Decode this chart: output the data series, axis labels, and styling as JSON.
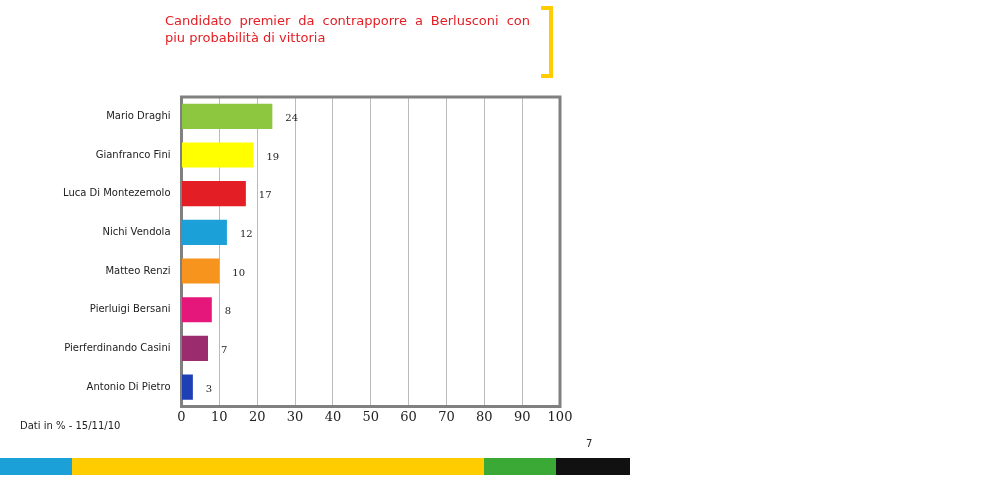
{
  "chart_data": {
    "type": "bar",
    "orientation": "horizontal",
    "title": "Candidato premier da contrapporre a Berlusconi con piu probabilità di vittoria",
    "categories": [
      "Mario Draghi",
      "Gianfranco Fini",
      "Luca Di Montezemolo",
      "Nichi Vendola",
      "Matteo Renzi",
      "Pierluigi Bersani",
      "Pierferdinando Casini",
      "Antonio Di Pietro"
    ],
    "values": [
      24,
      19,
      17,
      12,
      10,
      8,
      7,
      3
    ],
    "colors": [
      "#8dc63f",
      "#ffff00",
      "#e31e24",
      "#1ba1d8",
      "#f7941d",
      "#e5177b",
      "#9b2d6f",
      "#1f3fb5"
    ],
    "xlim": [
      0,
      100
    ],
    "xticks": [
      0,
      10,
      20,
      30,
      40,
      50,
      60,
      70,
      80,
      90,
      100
    ],
    "grid": "x",
    "data_labels": true,
    "legend": false,
    "annotations": [
      "Dati in % - 15/11/10",
      "7"
    ]
  }
}
